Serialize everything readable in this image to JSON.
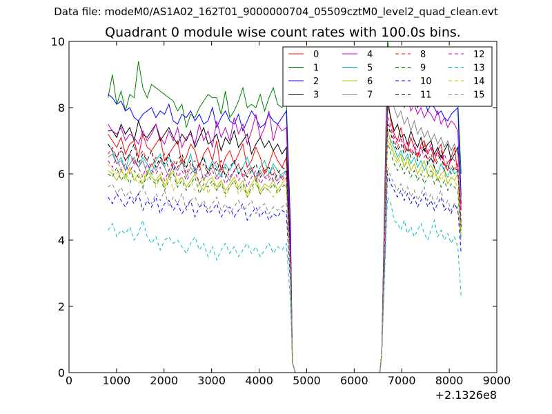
{
  "figure": {
    "suptitle": "Data file: modeM0/AS1A02_162T01_9000000704_05509cztM0_level2_quad_clean.evt"
  },
  "chart_data": {
    "type": "line",
    "title": "Quadrant 0 module wise count rates with 100.0s bins.",
    "xlabel": "",
    "ylabel": "",
    "xlim": [
      0,
      9000
    ],
    "ylim": [
      0,
      10
    ],
    "x_offset_label": "+2.1326e8",
    "x_ticks": [
      "0",
      "1000",
      "2000",
      "3000",
      "4000",
      "5000",
      "6000",
      "7000",
      "8000",
      "9000"
    ],
    "y_ticks": [
      "0",
      "2",
      "4",
      "6",
      "8",
      "10"
    ],
    "grid": false,
    "legend": {
      "position": "top-right",
      "columns": 4
    },
    "series": [
      {
        "name": "0",
        "color": "#ff0000",
        "dash": "solid",
        "start": [
          7.2,
          7.0,
          6.8,
          7.1,
          6.6,
          6.9,
          7.0,
          6.5,
          7.2,
          6.8,
          6.7,
          6.9,
          7.1,
          6.4,
          6.6,
          6.8,
          7.0,
          6.3,
          6.5,
          6.9,
          6.7,
          6.2,
          6.6,
          6.8,
          6.4,
          7.0,
          6.1,
          6.5,
          6.7,
          6.3,
          6.6,
          6.9,
          6.2,
          6.4,
          6.8,
          6.5,
          6.0,
          6.3,
          6.7,
          6.4,
          6.2,
          6.5
        ],
        "end": [
          8.4,
          7.6,
          7.2,
          7.0,
          7.4,
          6.9,
          6.7,
          7.1,
          6.8,
          6.5,
          6.9,
          7.0,
          6.6,
          6.8,
          6.4,
          6.7,
          6.9,
          6.3,
          6.1,
          6.5,
          6.8,
          6.0,
          5.0
        ]
      },
      {
        "name": "1",
        "color": "#008000",
        "dash": "solid",
        "start": [
          8.3,
          9.0,
          8.1,
          8.5,
          7.9,
          8.4,
          8.3,
          9.4,
          8.6,
          8.3,
          8.7,
          8.6,
          8.5,
          8.4,
          8.3,
          8.2,
          7.9,
          8.1,
          7.4,
          7.8,
          7.7,
          8.0,
          8.2,
          8.4,
          8.3,
          8.3,
          7.8,
          8.5,
          7.7,
          7.9,
          8.2,
          8.6,
          8.0,
          8.1,
          8.0,
          8.4,
          7.9,
          8.3,
          8.6,
          8.1,
          8.0,
          8.2
        ],
        "end": [
          10.0,
          9.6,
          9.3,
          9.2,
          9.5,
          8.9,
          9.0,
          9.3,
          8.9,
          8.8,
          9.1,
          8.7,
          9.0,
          9.2,
          8.8,
          8.9,
          8.6,
          8.5,
          8.7,
          8.3,
          8.4,
          8.2,
          6.0
        ]
      },
      {
        "name": "2",
        "color": "#0000ff",
        "dash": "solid",
        "start": [
          8.4,
          8.3,
          8.1,
          8.2,
          7.9,
          8.0,
          7.7,
          7.6,
          7.8,
          7.9,
          8.0,
          7.7,
          7.9,
          7.8,
          8.1,
          7.6,
          7.5,
          7.8,
          7.7,
          7.9,
          7.6,
          7.8,
          7.5,
          7.6,
          8.0,
          7.4,
          7.7,
          7.9,
          7.6,
          7.5,
          7.8,
          7.3,
          7.6,
          7.9,
          7.7,
          7.4,
          7.5,
          7.8,
          7.6,
          7.5,
          7.7,
          7.9
        ],
        "end": [
          9.4,
          9.0,
          8.7,
          8.5,
          8.8,
          8.3,
          8.5,
          8.1,
          8.4,
          8.0,
          8.2,
          8.3,
          7.9,
          8.1,
          8.0,
          7.8,
          7.9,
          7.7,
          7.6,
          7.8,
          7.9,
          8.0,
          5.3
        ]
      },
      {
        "name": "3",
        "color": "#000000",
        "dash": "solid",
        "start": [
          7.3,
          7.3,
          7.1,
          7.5,
          7.2,
          7.4,
          7.0,
          7.6,
          7.2,
          7.1,
          7.3,
          7.5,
          7.0,
          7.2,
          7.4,
          7.1,
          6.9,
          7.2,
          7.0,
          7.3,
          6.8,
          7.1,
          7.4,
          6.9,
          7.0,
          7.2,
          6.7,
          7.1,
          6.9,
          7.3,
          6.8,
          7.0,
          7.2,
          6.6,
          6.9,
          7.1,
          6.8,
          7.0,
          6.7,
          6.9,
          6.6,
          6.8
        ],
        "end": [
          8.1,
          7.7,
          7.3,
          7.5,
          7.1,
          7.2,
          6.9,
          7.3,
          7.0,
          6.8,
          7.1,
          6.7,
          6.9,
          7.0,
          6.6,
          6.8,
          6.5,
          6.7,
          6.9,
          6.4,
          6.6,
          6.8,
          5.1
        ]
      },
      {
        "name": "4",
        "color": "#bf00bf",
        "dash": "solid",
        "start": [
          7.5,
          7.3,
          7.2,
          7.4,
          7.0,
          7.2,
          7.1,
          6.9,
          7.3,
          7.0,
          7.2,
          7.5,
          7.1,
          6.9,
          7.3,
          7.0,
          7.4,
          6.8,
          7.1,
          7.2,
          6.9,
          7.5,
          7.0,
          7.3,
          6.8,
          7.6,
          7.1,
          7.4,
          7.0,
          7.7,
          7.2,
          7.5,
          6.9,
          7.3,
          7.8,
          7.1,
          7.4,
          7.9,
          7.0,
          7.5,
          7.3,
          7.4
        ],
        "end": [
          9.5,
          8.8,
          8.5,
          8.2,
          8.4,
          8.0,
          8.3,
          7.9,
          8.1,
          7.8,
          8.0,
          7.7,
          7.9,
          7.8,
          7.6,
          7.9,
          7.5,
          7.7,
          7.4,
          7.6,
          7.5,
          7.3,
          4.9
        ]
      },
      {
        "name": "5",
        "color": "#00bfbf",
        "dash": "solid",
        "start": [
          6.9,
          6.7,
          6.3,
          6.5,
          6.1,
          6.6,
          6.4,
          6.2,
          6.5,
          6.3,
          6.0,
          6.4,
          6.6,
          6.2,
          6.5,
          6.3,
          6.1,
          6.4,
          6.2,
          6.6,
          6.0,
          6.3,
          6.5,
          6.1,
          6.4,
          6.2,
          5.9,
          6.3,
          6.1,
          6.4,
          6.0,
          6.2,
          6.5,
          6.1,
          5.9,
          6.2,
          6.4,
          6.0,
          6.3,
          6.1,
          5.9,
          6.1
        ],
        "end": [
          7.3,
          7.0,
          6.8,
          6.5,
          6.7,
          6.4,
          6.6,
          6.3,
          6.5,
          6.2,
          6.4,
          6.1,
          6.3,
          6.5,
          6.2,
          6.0,
          6.3,
          6.1,
          5.9,
          6.2,
          6.0,
          6.1,
          4.3
        ]
      },
      {
        "name": "6",
        "color": "#bfbf00",
        "dash": "solid",
        "start": [
          6.1,
          6.0,
          5.8,
          6.1,
          5.9,
          6.2,
          5.8,
          6.0,
          5.7,
          6.1,
          5.9,
          5.8,
          6.0,
          5.6,
          5.9,
          6.1,
          5.7,
          5.9,
          5.6,
          5.8,
          6.0,
          5.7,
          5.5,
          5.8,
          5.9,
          5.6,
          5.8,
          5.5,
          5.7,
          5.9,
          5.6,
          5.8,
          5.4,
          5.7,
          5.9,
          5.5,
          5.7,
          5.6,
          5.8,
          5.5,
          5.7,
          5.9
        ],
        "end": [
          7.4,
          6.9,
          6.6,
          6.4,
          6.6,
          6.2,
          6.5,
          6.1,
          6.3,
          6.0,
          6.2,
          6.4,
          6.0,
          5.9,
          6.2,
          5.8,
          6.0,
          6.1,
          5.7,
          5.9,
          5.8,
          6.0,
          4.3
        ]
      },
      {
        "name": "7",
        "color": "#808080",
        "dash": "solid",
        "start": [
          6.5,
          6.6,
          6.3,
          6.4,
          6.1,
          6.3,
          6.5,
          6.2,
          6.4,
          6.0,
          6.3,
          6.1,
          6.4,
          6.2,
          5.9,
          6.3,
          6.1,
          6.4,
          5.9,
          6.2,
          6.0,
          6.3,
          5.8,
          6.1,
          6.3,
          5.9,
          6.2,
          6.0,
          5.8,
          6.1,
          6.3,
          5.9,
          6.0,
          6.2,
          5.8,
          6.1,
          5.9,
          6.0,
          6.2,
          5.8,
          6.0,
          6.1
        ],
        "end": [
          8.7,
          8.3,
          8.0,
          7.7,
          7.9,
          7.5,
          7.7,
          7.3,
          7.6,
          7.2,
          7.4,
          7.1,
          7.3,
          7.0,
          7.2,
          6.9,
          7.1,
          6.8,
          7.0,
          6.7,
          6.9,
          6.6,
          5.2
        ]
      },
      {
        "name": "8",
        "color": "#ff0000",
        "dash": "dashed",
        "start": [
          6.6,
          6.8,
          6.5,
          6.7,
          6.4,
          6.6,
          6.3,
          6.5,
          6.7,
          6.4,
          6.2,
          6.5,
          6.3,
          6.6,
          6.1,
          6.4,
          6.2,
          6.5,
          6.0,
          6.3,
          6.4,
          6.1,
          6.3,
          6.0,
          6.2,
          6.4,
          6.0,
          6.2,
          5.9,
          6.1,
          6.3,
          5.9,
          6.1,
          6.2,
          5.8,
          6.0,
          6.2,
          5.9,
          6.0,
          6.1,
          5.8,
          6.0
        ],
        "end": [
          7.6,
          7.3,
          7.0,
          6.8,
          7.1,
          6.7,
          6.9,
          6.6,
          6.8,
          6.5,
          6.7,
          6.9,
          6.4,
          6.6,
          6.3,
          6.5,
          6.7,
          6.2,
          6.4,
          6.3,
          6.1,
          6.3,
          4.6
        ]
      },
      {
        "name": "9",
        "color": "#008000",
        "dash": "dashed",
        "start": [
          6.0,
          5.9,
          6.2,
          5.8,
          6.0,
          5.7,
          6.1,
          5.9,
          5.6,
          6.0,
          5.8,
          5.7,
          5.9,
          5.5,
          5.8,
          6.0,
          5.6,
          5.8,
          5.5,
          5.7,
          5.9,
          5.4,
          5.7,
          5.6,
          5.8,
          5.5,
          5.7,
          5.4,
          5.6,
          5.8,
          5.5,
          5.7,
          5.3,
          5.6,
          5.8,
          5.4,
          5.6,
          5.5,
          5.7,
          5.4,
          5.6,
          5.7
        ],
        "end": [
          7.0,
          6.6,
          6.3,
          6.1,
          6.3,
          6.0,
          6.2,
          5.9,
          6.1,
          5.8,
          6.0,
          5.7,
          5.9,
          6.1,
          5.7,
          5.9,
          5.6,
          5.8,
          5.5,
          5.7,
          5.6,
          5.5,
          4.0
        ]
      },
      {
        "name": "10",
        "color": "#0000ff",
        "dash": "dashed",
        "start": [
          5.3,
          5.1,
          5.4,
          5.2,
          5.0,
          5.3,
          5.1,
          5.4,
          4.9,
          5.2,
          5.0,
          5.3,
          4.8,
          5.1,
          5.2,
          4.9,
          5.1,
          4.8,
          5.0,
          5.2,
          4.7,
          5.0,
          5.1,
          4.8,
          4.9,
          5.1,
          4.7,
          4.9,
          5.0,
          4.7,
          4.9,
          5.1,
          4.6,
          4.8,
          5.0,
          4.7,
          4.9,
          4.6,
          4.8,
          4.7,
          4.9,
          4.8
        ],
        "end": [
          6.0,
          5.7,
          5.5,
          5.3,
          5.5,
          5.2,
          5.4,
          5.1,
          5.3,
          5.0,
          5.2,
          5.4,
          5.0,
          5.2,
          4.9,
          5.1,
          5.3,
          4.9,
          5.0,
          4.8,
          5.1,
          4.9,
          3.6
        ]
      },
      {
        "name": "11",
        "color": "#000000",
        "dash": "dashed",
        "start": [
          6.9,
          6.7,
          6.5,
          6.8,
          6.4,
          6.6,
          6.9,
          6.3,
          6.6,
          6.4,
          6.7,
          6.2,
          6.5,
          6.3,
          6.6,
          6.1,
          6.4,
          6.6,
          6.2,
          6.4,
          6.1,
          6.3,
          6.5,
          6.0,
          6.3,
          6.1,
          6.4,
          5.9,
          6.2,
          6.4,
          6.0,
          6.2,
          5.9,
          6.1,
          6.3,
          5.9,
          6.1,
          6.2,
          5.8,
          6.0,
          6.2,
          6.1
        ],
        "end": [
          7.5,
          7.2,
          6.9,
          6.7,
          6.9,
          6.6,
          6.8,
          6.5,
          6.7,
          6.4,
          6.6,
          6.8,
          6.3,
          6.5,
          6.2,
          6.4,
          6.6,
          6.1,
          6.3,
          6.0,
          6.2,
          6.1,
          4.4
        ]
      },
      {
        "name": "12",
        "color": "#bf00bf",
        "dash": "dashed",
        "start": [
          6.4,
          6.2,
          6.5,
          6.1,
          6.3,
          6.0,
          6.4,
          6.2,
          5.9,
          6.3,
          6.1,
          6.0,
          6.2,
          5.8,
          6.1,
          6.3,
          5.9,
          6.1,
          5.8,
          6.0,
          6.2,
          5.7,
          6.0,
          5.9,
          6.1,
          5.8,
          6.0,
          5.7,
          5.9,
          6.1,
          5.8,
          6.0,
          5.6,
          5.9,
          6.1,
          5.7,
          5.9,
          5.8,
          6.0,
          5.7,
          5.9,
          6.0
        ],
        "end": [
          7.8,
          7.4,
          7.1,
          6.9,
          7.1,
          6.8,
          7.0,
          6.7,
          6.9,
          6.6,
          6.8,
          6.5,
          6.7,
          6.9,
          6.5,
          6.7,
          6.4,
          6.6,
          6.3,
          6.5,
          6.4,
          6.2,
          4.5
        ]
      },
      {
        "name": "13",
        "color": "#00bfbf",
        "dash": "dashed",
        "start": [
          4.3,
          4.5,
          4.1,
          4.3,
          4.2,
          4.4,
          4.0,
          4.2,
          4.6,
          4.1,
          3.9,
          4.1,
          3.7,
          4.0,
          4.1,
          3.9,
          4.0,
          3.8,
          3.6,
          3.9,
          4.1,
          3.7,
          3.9,
          3.5,
          3.8,
          3.4,
          3.7,
          3.9,
          3.6,
          3.8,
          3.5,
          3.7,
          3.9,
          3.6,
          3.8,
          3.5,
          3.7,
          3.9,
          3.6,
          3.8,
          3.7,
          3.9
        ],
        "end": [
          5.3,
          5.1,
          4.6,
          4.5,
          4.3,
          4.6,
          4.2,
          4.4,
          4.1,
          4.3,
          4.5,
          4.2,
          4.0,
          4.3,
          4.6,
          4.1,
          4.3,
          4.0,
          4.2,
          3.9,
          4.1,
          3.8,
          2.3
        ]
      },
      {
        "name": "14",
        "color": "#bfbf00",
        "dash": "dashed",
        "start": [
          6.3,
          6.1,
          6.0,
          6.2,
          5.8,
          6.1,
          5.9,
          5.7,
          6.0,
          5.8,
          6.1,
          5.6,
          5.9,
          5.7,
          6.0,
          5.5,
          5.8,
          5.9,
          5.6,
          5.8,
          5.5,
          5.7,
          5.9,
          5.4,
          5.7,
          5.5,
          5.8,
          5.3,
          5.6,
          5.8,
          5.4,
          5.6,
          5.3,
          5.5,
          5.7,
          5.4,
          5.6,
          5.5,
          5.3,
          5.5,
          5.7,
          5.6
        ],
        "end": [
          7.1,
          6.8,
          6.5,
          6.3,
          6.5,
          6.2,
          6.4,
          6.1,
          6.3,
          6.0,
          6.2,
          5.9,
          6.1,
          6.3,
          5.9,
          6.1,
          5.8,
          6.0,
          5.7,
          5.9,
          5.8,
          5.6,
          4.2
        ]
      },
      {
        "name": "15",
        "color": "#808080",
        "dash": "dashed",
        "start": [
          5.6,
          5.7,
          5.4,
          5.6,
          5.3,
          5.5,
          5.2,
          5.4,
          5.6,
          5.3,
          5.1,
          5.4,
          5.2,
          5.5,
          5.0,
          5.3,
          5.1,
          5.4,
          4.9,
          5.2,
          5.3,
          5.0,
          5.2,
          4.9,
          5.1,
          5.3,
          4.9,
          5.1,
          4.8,
          5.0,
          5.2,
          4.9,
          5.0,
          5.2,
          4.8,
          5.0,
          5.1,
          4.8,
          5.0,
          4.9,
          5.0,
          5.1
        ],
        "end": [
          6.2,
          5.9,
          5.7,
          5.5,
          5.7,
          5.4,
          5.6,
          5.3,
          5.5,
          5.2,
          5.4,
          5.6,
          5.2,
          5.4,
          5.1,
          5.3,
          5.5,
          5.0,
          5.2,
          4.9,
          5.1,
          5.0,
          3.9
        ]
      }
    ]
  }
}
